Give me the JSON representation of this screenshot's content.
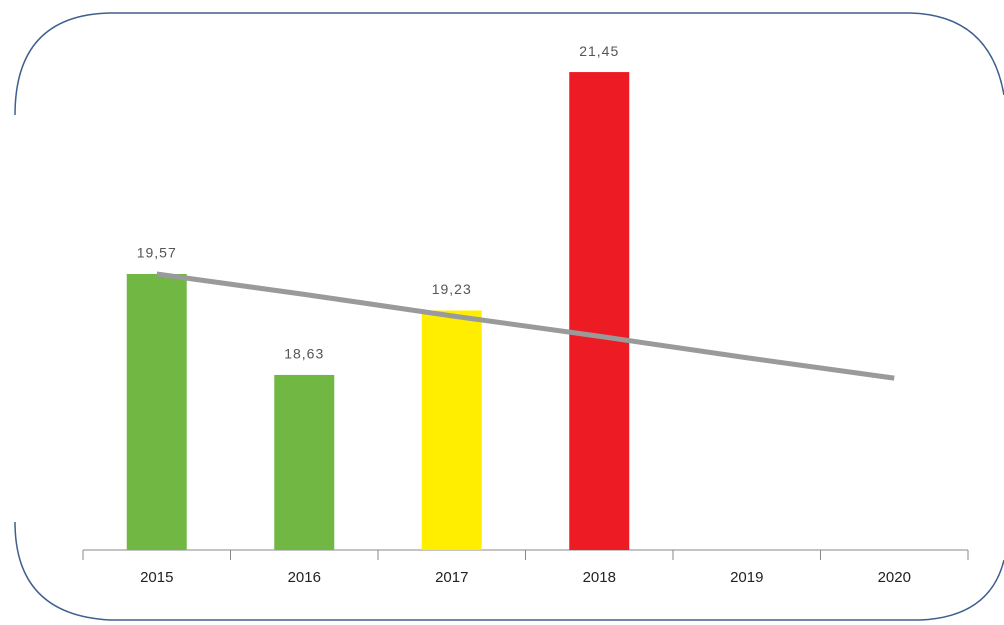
{
  "chart_data": {
    "type": "bar",
    "categories": [
      "2015",
      "2016",
      "2017",
      "2018",
      "2019",
      "2020"
    ],
    "values": [
      19.57,
      18.63,
      19.23,
      21.45,
      null,
      null
    ],
    "value_labels": [
      "19,57",
      "18,63",
      "19,23",
      "21,45",
      null,
      null
    ],
    "colors": [
      "#70b843",
      "#70b843",
      "#ffee00",
      "#ed1c24",
      null,
      null
    ],
    "ylim": [
      17,
      22
    ],
    "trendline": {
      "color": "#9a9a9a",
      "values": [
        19.57,
        19.38,
        19.18,
        18.99,
        18.79,
        18.6
      ]
    }
  }
}
